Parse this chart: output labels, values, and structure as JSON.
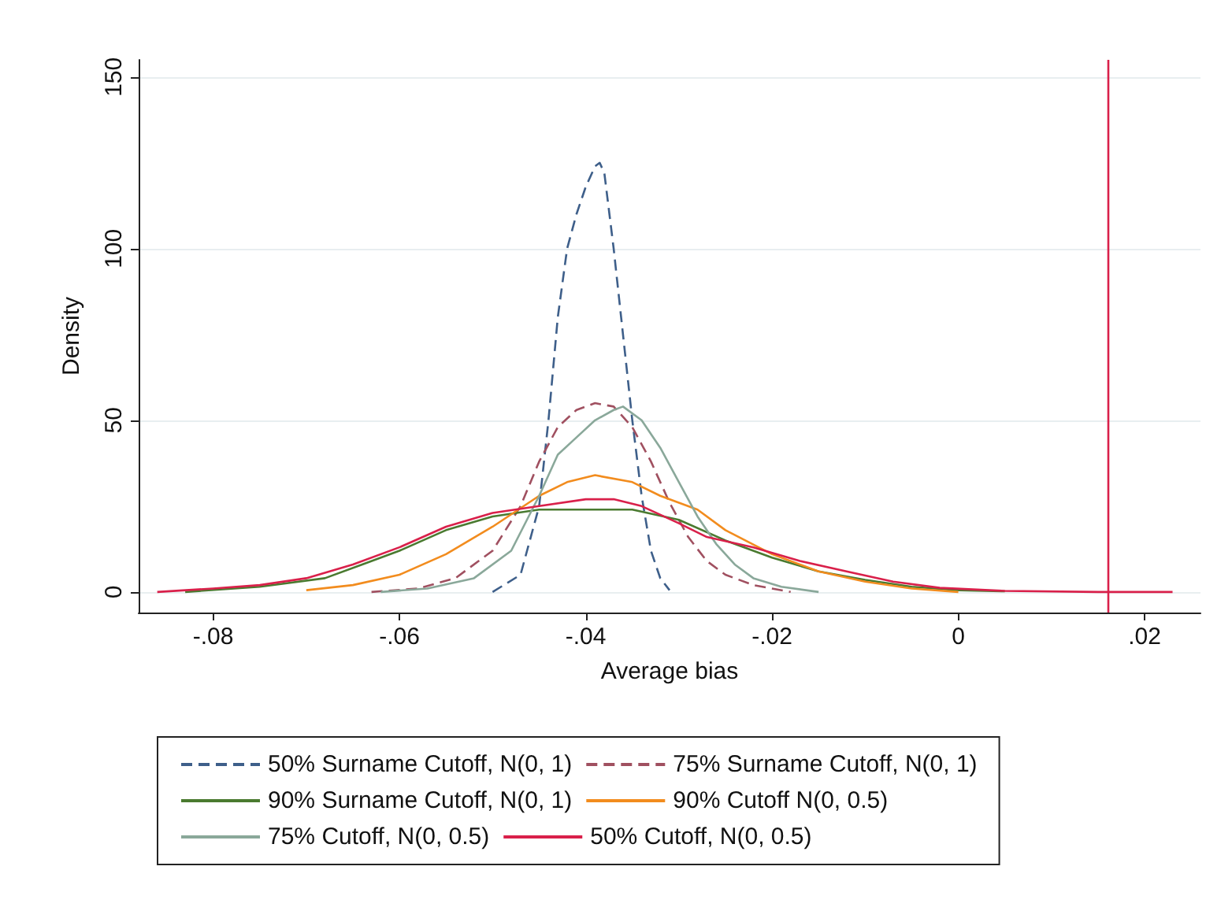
{
  "chart_data": {
    "type": "line",
    "xlabel": "Average bias",
    "ylabel": "Density",
    "xlim": [
      -0.088,
      0.026
    ],
    "ylim": [
      -6,
      155
    ],
    "xticks": [
      {
        "value": -0.08,
        "label": "-.08"
      },
      {
        "value": -0.06,
        "label": "-.06"
      },
      {
        "value": -0.04,
        "label": "-.04"
      },
      {
        "value": -0.02,
        "label": "-.02"
      },
      0,
      {
        "value": 0.02,
        "label": ".02"
      }
    ],
    "yticks": [
      0,
      50,
      100,
      150
    ],
    "grid": "y",
    "legend": "bottom",
    "marker": "none",
    "ref_lines": [
      {
        "axis": "x",
        "value": 0.016,
        "color": "#d9204a",
        "line_style": "solid"
      }
    ],
    "series": [
      {
        "name": "50% Surname Cutoff, N(0, 1)",
        "color": "#3e5f8a",
        "line_style": "dashed",
        "x": [
          -0.05,
          -0.047,
          -0.045,
          -0.044,
          -0.043,
          -0.042,
          -0.041,
          -0.04,
          -0.039,
          -0.0385,
          -0.038,
          -0.037,
          -0.036,
          -0.035,
          -0.034,
          -0.033,
          -0.032,
          -0.031
        ],
        "values": [
          0,
          5,
          25,
          50,
          80,
          100,
          110,
          118,
          124,
          125,
          122,
          100,
          75,
          50,
          28,
          12,
          4,
          0.5
        ]
      },
      {
        "name": "75% Surname Cutoff, N(0, 1)",
        "color": "#a05060",
        "line_style": "dashed",
        "x": [
          -0.063,
          -0.058,
          -0.054,
          -0.05,
          -0.047,
          -0.045,
          -0.043,
          -0.041,
          -0.039,
          -0.037,
          -0.035,
          -0.033,
          -0.031,
          -0.029,
          -0.027,
          -0.025,
          -0.022,
          -0.018
        ],
        "values": [
          0,
          1,
          4,
          12,
          25,
          38,
          48,
          53,
          55,
          54,
          48,
          38,
          26,
          16,
          9,
          5,
          2,
          0
        ]
      },
      {
        "name": "90% Surname Cutoff, N(0, 1)",
        "color": "#4a7a30",
        "line_style": "solid",
        "x": [
          -0.083,
          -0.075,
          -0.068,
          -0.064,
          -0.06,
          -0.055,
          -0.05,
          -0.045,
          -0.04,
          -0.035,
          -0.03,
          -0.025,
          -0.02,
          -0.015,
          -0.01,
          -0.005,
          0,
          0.005
        ],
        "values": [
          0,
          1.5,
          4,
          8,
          12,
          18,
          22,
          24,
          24,
          24,
          21,
          15,
          10,
          6,
          3.5,
          1.5,
          0.5,
          0.2
        ]
      },
      {
        "name": "90% Cutoff N(0, 0.5)",
        "color": "#f28c1e",
        "line_style": "solid",
        "x": [
          -0.07,
          -0.065,
          -0.06,
          -0.055,
          -0.05,
          -0.045,
          -0.042,
          -0.039,
          -0.035,
          -0.032,
          -0.028,
          -0.025,
          -0.02,
          -0.015,
          -0.01,
          -0.005,
          0
        ],
        "values": [
          0.5,
          2,
          5,
          11,
          19,
          28,
          32,
          34,
          32,
          28,
          24,
          18,
          11,
          6,
          3,
          1,
          0
        ]
      },
      {
        "name": "75% Cutoff, N(0, 0.5)",
        "color": "#8aa89a",
        "line_style": "solid",
        "x": [
          -0.062,
          -0.057,
          -0.052,
          -0.048,
          -0.045,
          -0.043,
          -0.041,
          -0.039,
          -0.037,
          -0.036,
          -0.034,
          -0.032,
          -0.03,
          -0.028,
          -0.026,
          -0.024,
          -0.022,
          -0.019,
          -0.015
        ],
        "values": [
          0,
          1,
          4,
          12,
          28,
          40,
          45,
          50,
          53,
          54,
          50,
          42,
          32,
          22,
          14,
          8,
          4,
          1.5,
          0
        ]
      },
      {
        "name": "50% Cutoff, N(0, 0.5)",
        "color": "#d9204a",
        "line_style": "solid",
        "x": [
          -0.086,
          -0.08,
          -0.075,
          -0.07,
          -0.065,
          -0.06,
          -0.055,
          -0.05,
          -0.045,
          -0.04,
          -0.037,
          -0.034,
          -0.03,
          -0.027,
          -0.022,
          -0.017,
          -0.012,
          -0.007,
          -0.002,
          0.005,
          0.015,
          0.023
        ],
        "values": [
          0,
          1,
          2,
          4,
          8,
          13,
          19,
          23,
          25,
          27,
          27,
          25,
          20,
          16,
          13,
          9,
          6,
          3,
          1.2,
          0.3,
          0,
          0
        ]
      }
    ]
  }
}
